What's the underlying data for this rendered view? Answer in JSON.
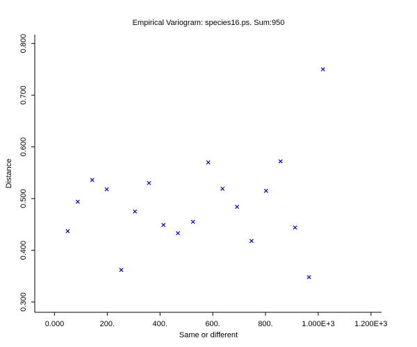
{
  "chart_data": {
    "type": "scatter",
    "title": "Empirical Variogram: species16.ps. Sum:950",
    "xlabel": "Same or different",
    "ylabel": "Distance",
    "xlim": [
      -75,
      1240
    ],
    "ylim": [
      0.28,
      0.817
    ],
    "x_ticks": [
      {
        "value": 0,
        "label": "0.000"
      },
      {
        "value": 200,
        "label": "200."
      },
      {
        "value": 400,
        "label": "400."
      },
      {
        "value": 600,
        "label": "600."
      },
      {
        "value": 800,
        "label": "800."
      },
      {
        "value": 1000,
        "label": "1.000E+3"
      },
      {
        "value": 1200,
        "label": "1.200E+3"
      }
    ],
    "y_ticks": [
      {
        "value": 0.3,
        "label": "0.300"
      },
      {
        "value": 0.4,
        "label": "0.400"
      },
      {
        "value": 0.5,
        "label": "0.500"
      },
      {
        "value": 0.6,
        "label": "0.600"
      },
      {
        "value": 0.7,
        "label": "0.700"
      },
      {
        "value": 0.8,
        "label": "0.800"
      }
    ],
    "marker": "x",
    "marker_color": "#0000cc",
    "grid": false,
    "points": [
      {
        "x": 50,
        "y": 0.437
      },
      {
        "x": 88,
        "y": 0.494
      },
      {
        "x": 143,
        "y": 0.536
      },
      {
        "x": 198,
        "y": 0.518
      },
      {
        "x": 253,
        "y": 0.362
      },
      {
        "x": 305,
        "y": 0.475
      },
      {
        "x": 358,
        "y": 0.53
      },
      {
        "x": 413,
        "y": 0.449
      },
      {
        "x": 468,
        "y": 0.433
      },
      {
        "x": 525,
        "y": 0.455
      },
      {
        "x": 583,
        "y": 0.57
      },
      {
        "x": 637,
        "y": 0.519
      },
      {
        "x": 692,
        "y": 0.484
      },
      {
        "x": 747,
        "y": 0.418
      },
      {
        "x": 802,
        "y": 0.515
      },
      {
        "x": 857,
        "y": 0.572
      },
      {
        "x": 912,
        "y": 0.444
      },
      {
        "x": 965,
        "y": 0.348
      },
      {
        "x": 1018,
        "y": 0.75
      }
    ]
  }
}
